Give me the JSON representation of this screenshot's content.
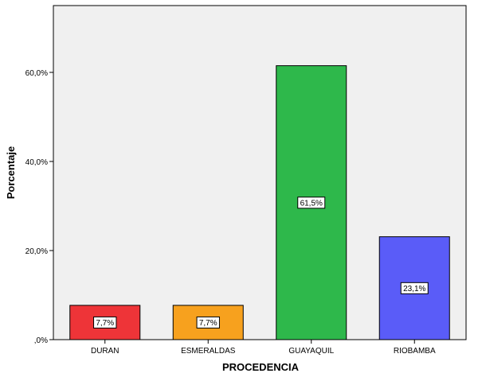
{
  "chart_data": {
    "type": "bar",
    "title": "",
    "xlabel": "PROCEDENCIA",
    "ylabel": "Porcentaje",
    "categories": [
      "DURAN",
      "ESMERALDAS",
      "GUAYAQUIL",
      "RIOBAMBA"
    ],
    "values": [
      7.7,
      7.7,
      61.5,
      23.1
    ],
    "value_labels": [
      "7,7%",
      "7,7%",
      "61,5%",
      "23,1%"
    ],
    "bar_colors": [
      "#ee3438",
      "#f7a11e",
      "#2eb84b",
      "#5a5cf8"
    ],
    "y_ticks": [
      0,
      20,
      40,
      60
    ],
    "y_tick_labels": [
      ",0%",
      "20,0%",
      "40,0%",
      "60,0%"
    ],
    "ylim": [
      0,
      75
    ],
    "grid": false,
    "legend": "none",
    "plot_background": "#f0f0f0"
  }
}
